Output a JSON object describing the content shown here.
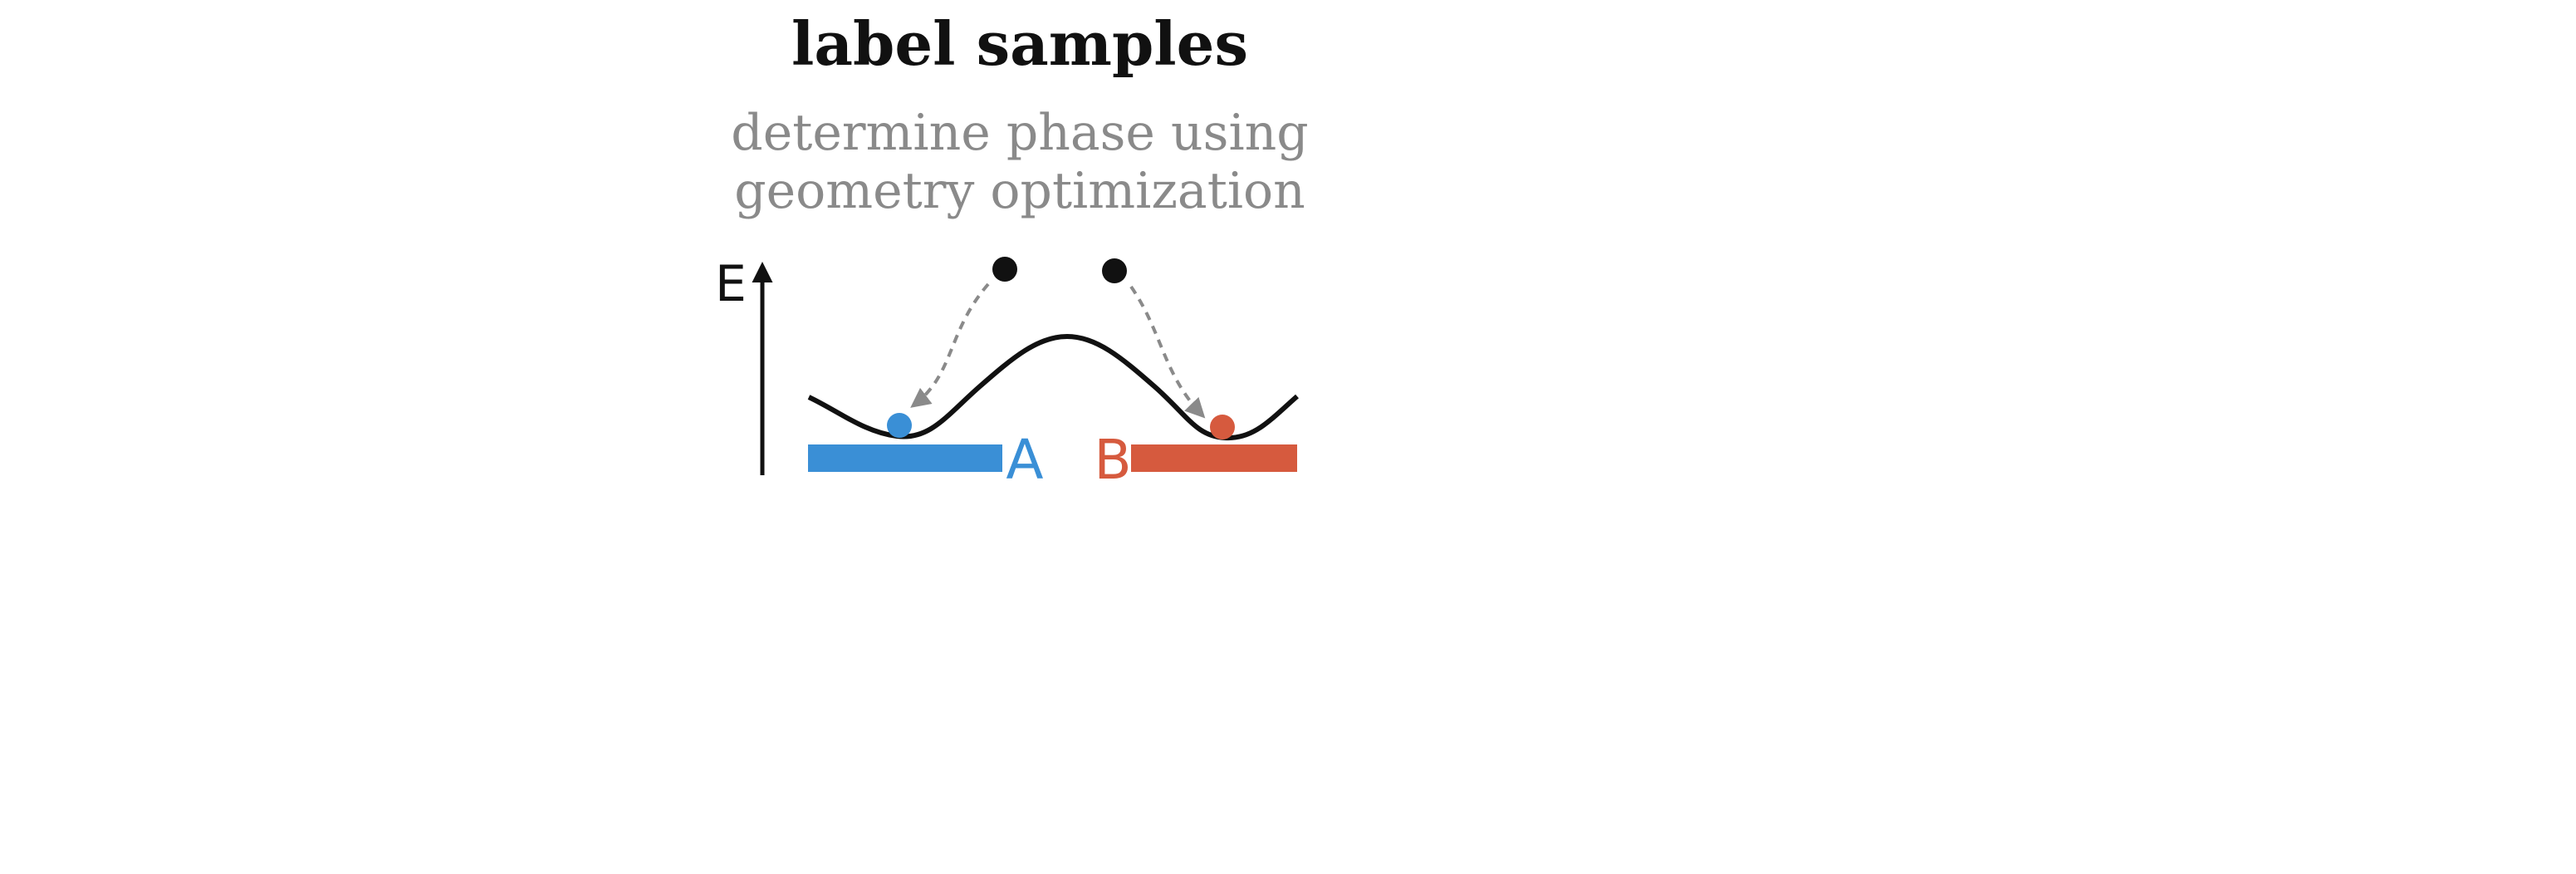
{
  "title": "label samples",
  "subtitle_lines": [
    "determine phase using",
    "geometry optimization"
  ],
  "axis_label": "E",
  "phases": [
    {
      "label": "A",
      "color": "#3a8fd6"
    },
    {
      "label": "B",
      "color": "#d65a3e"
    }
  ],
  "colors": {
    "curve": "#111111",
    "arrow": "#8a8a8a",
    "sample": "#111111"
  }
}
